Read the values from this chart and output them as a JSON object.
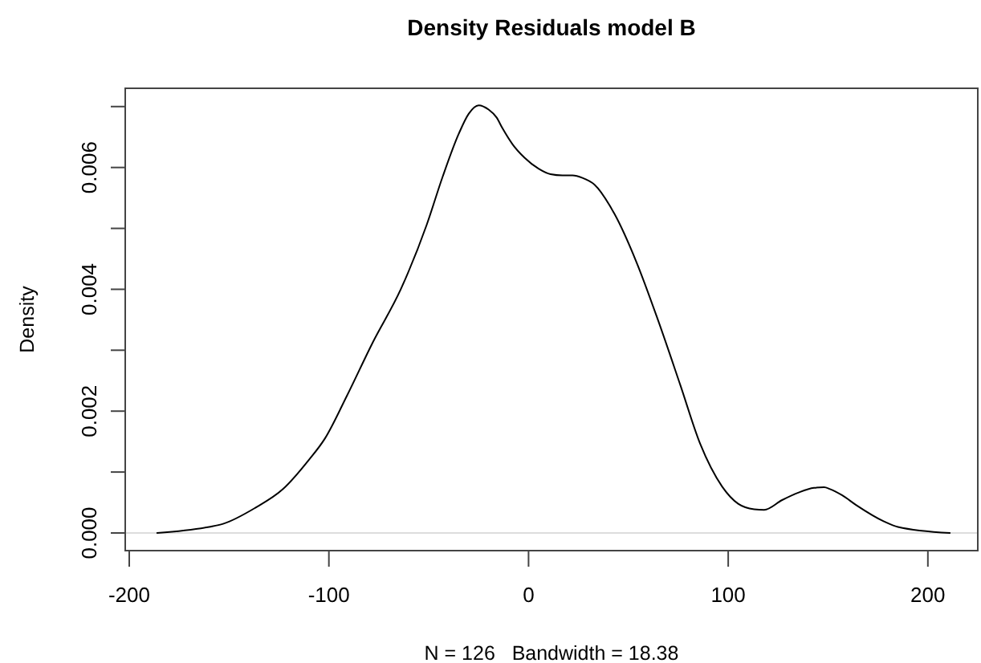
{
  "chart_data": {
    "type": "line",
    "title": "Density Residuals model B",
    "xlabel": "N = 126   Bandwidth = 18.38",
    "ylabel": "Density",
    "x": [
      -186,
      -160,
      -153,
      -137,
      -123,
      -110,
      -102,
      -91,
      -78,
      -64,
      -51,
      -43,
      -35,
      -30,
      -25,
      -20,
      -16,
      -13,
      -8,
      -2,
      5,
      11,
      17,
      22,
      27,
      33,
      43,
      54,
      65,
      76,
      86,
      97,
      105,
      113,
      118,
      127,
      135,
      143,
      148,
      151,
      157,
      164,
      178,
      185,
      211
    ],
    "values": [
      0,
      0.0001,
      0.00015,
      0.00041,
      0.00072,
      0.0012,
      0.00155,
      0.00225,
      0.00313,
      0.004,
      0.00506,
      0.00585,
      0.00655,
      0.00688,
      0.00702,
      0.00695,
      0.00682,
      0.00664,
      0.00638,
      0.00616,
      0.00598,
      0.00589,
      0.00587,
      0.00587,
      0.00583,
      0.00572,
      0.00524,
      0.00445,
      0.00348,
      0.00243,
      0.00146,
      0.00076,
      0.00048,
      0.00039,
      0.00038,
      0.00054,
      0.00066,
      0.00074,
      0.00075,
      0.00072,
      0.00062,
      0.00046,
      0.00019,
      0.0001,
      0
    ],
    "color": "#000000",
    "xlim": [
      -202,
      225
    ],
    "ylim": [
      -0.00029,
      0.0073
    ],
    "xticks": [
      -200,
      -100,
      0,
      100,
      200
    ],
    "yticks": [
      {
        "value": 0,
        "label": "0.000"
      },
      {
        "value": 0.001,
        "label": null
      },
      0.002,
      {
        "value": 0.003,
        "label": null
      },
      0.004,
      {
        "value": 0.005,
        "label": null
      },
      0.006,
      {
        "value": 0.007,
        "label": null
      }
    ],
    "ref_lines": [
      {
        "axis": "y",
        "value": 0,
        "color": "#dddddd"
      }
    ]
  }
}
